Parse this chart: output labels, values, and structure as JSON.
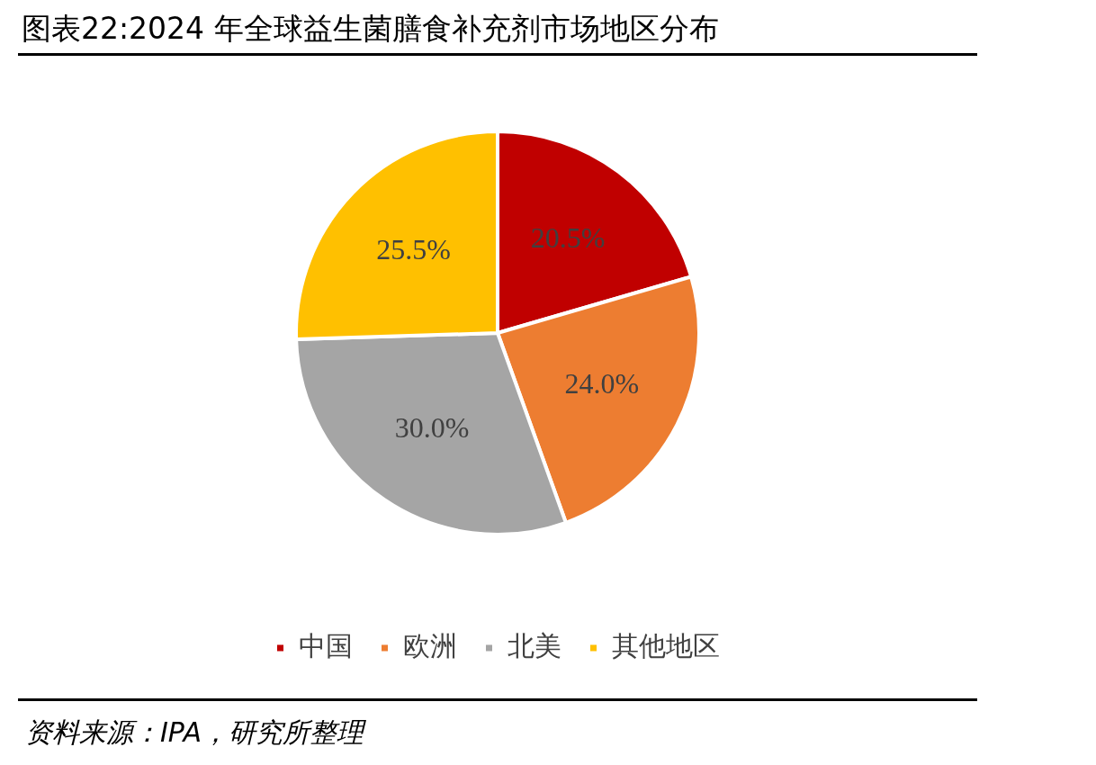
{
  "chart_data": {
    "type": "pie",
    "title": "图表22:2024 年全球益生菌膳食补充剂市场地区分布",
    "categories": [
      "中国",
      "欧洲",
      "北美",
      "其他地区"
    ],
    "values": [
      20.5,
      24.0,
      30.0,
      25.5
    ],
    "colors": [
      "#c00000",
      "#ed7d31",
      "#a5a5a5",
      "#ffc000"
    ],
    "value_labels": [
      "20.5%",
      "24.0%",
      "30.0%",
      "25.5%"
    ],
    "legend": "bottom",
    "annotations": [
      "资料来源：IPA，研究所整理"
    ]
  }
}
